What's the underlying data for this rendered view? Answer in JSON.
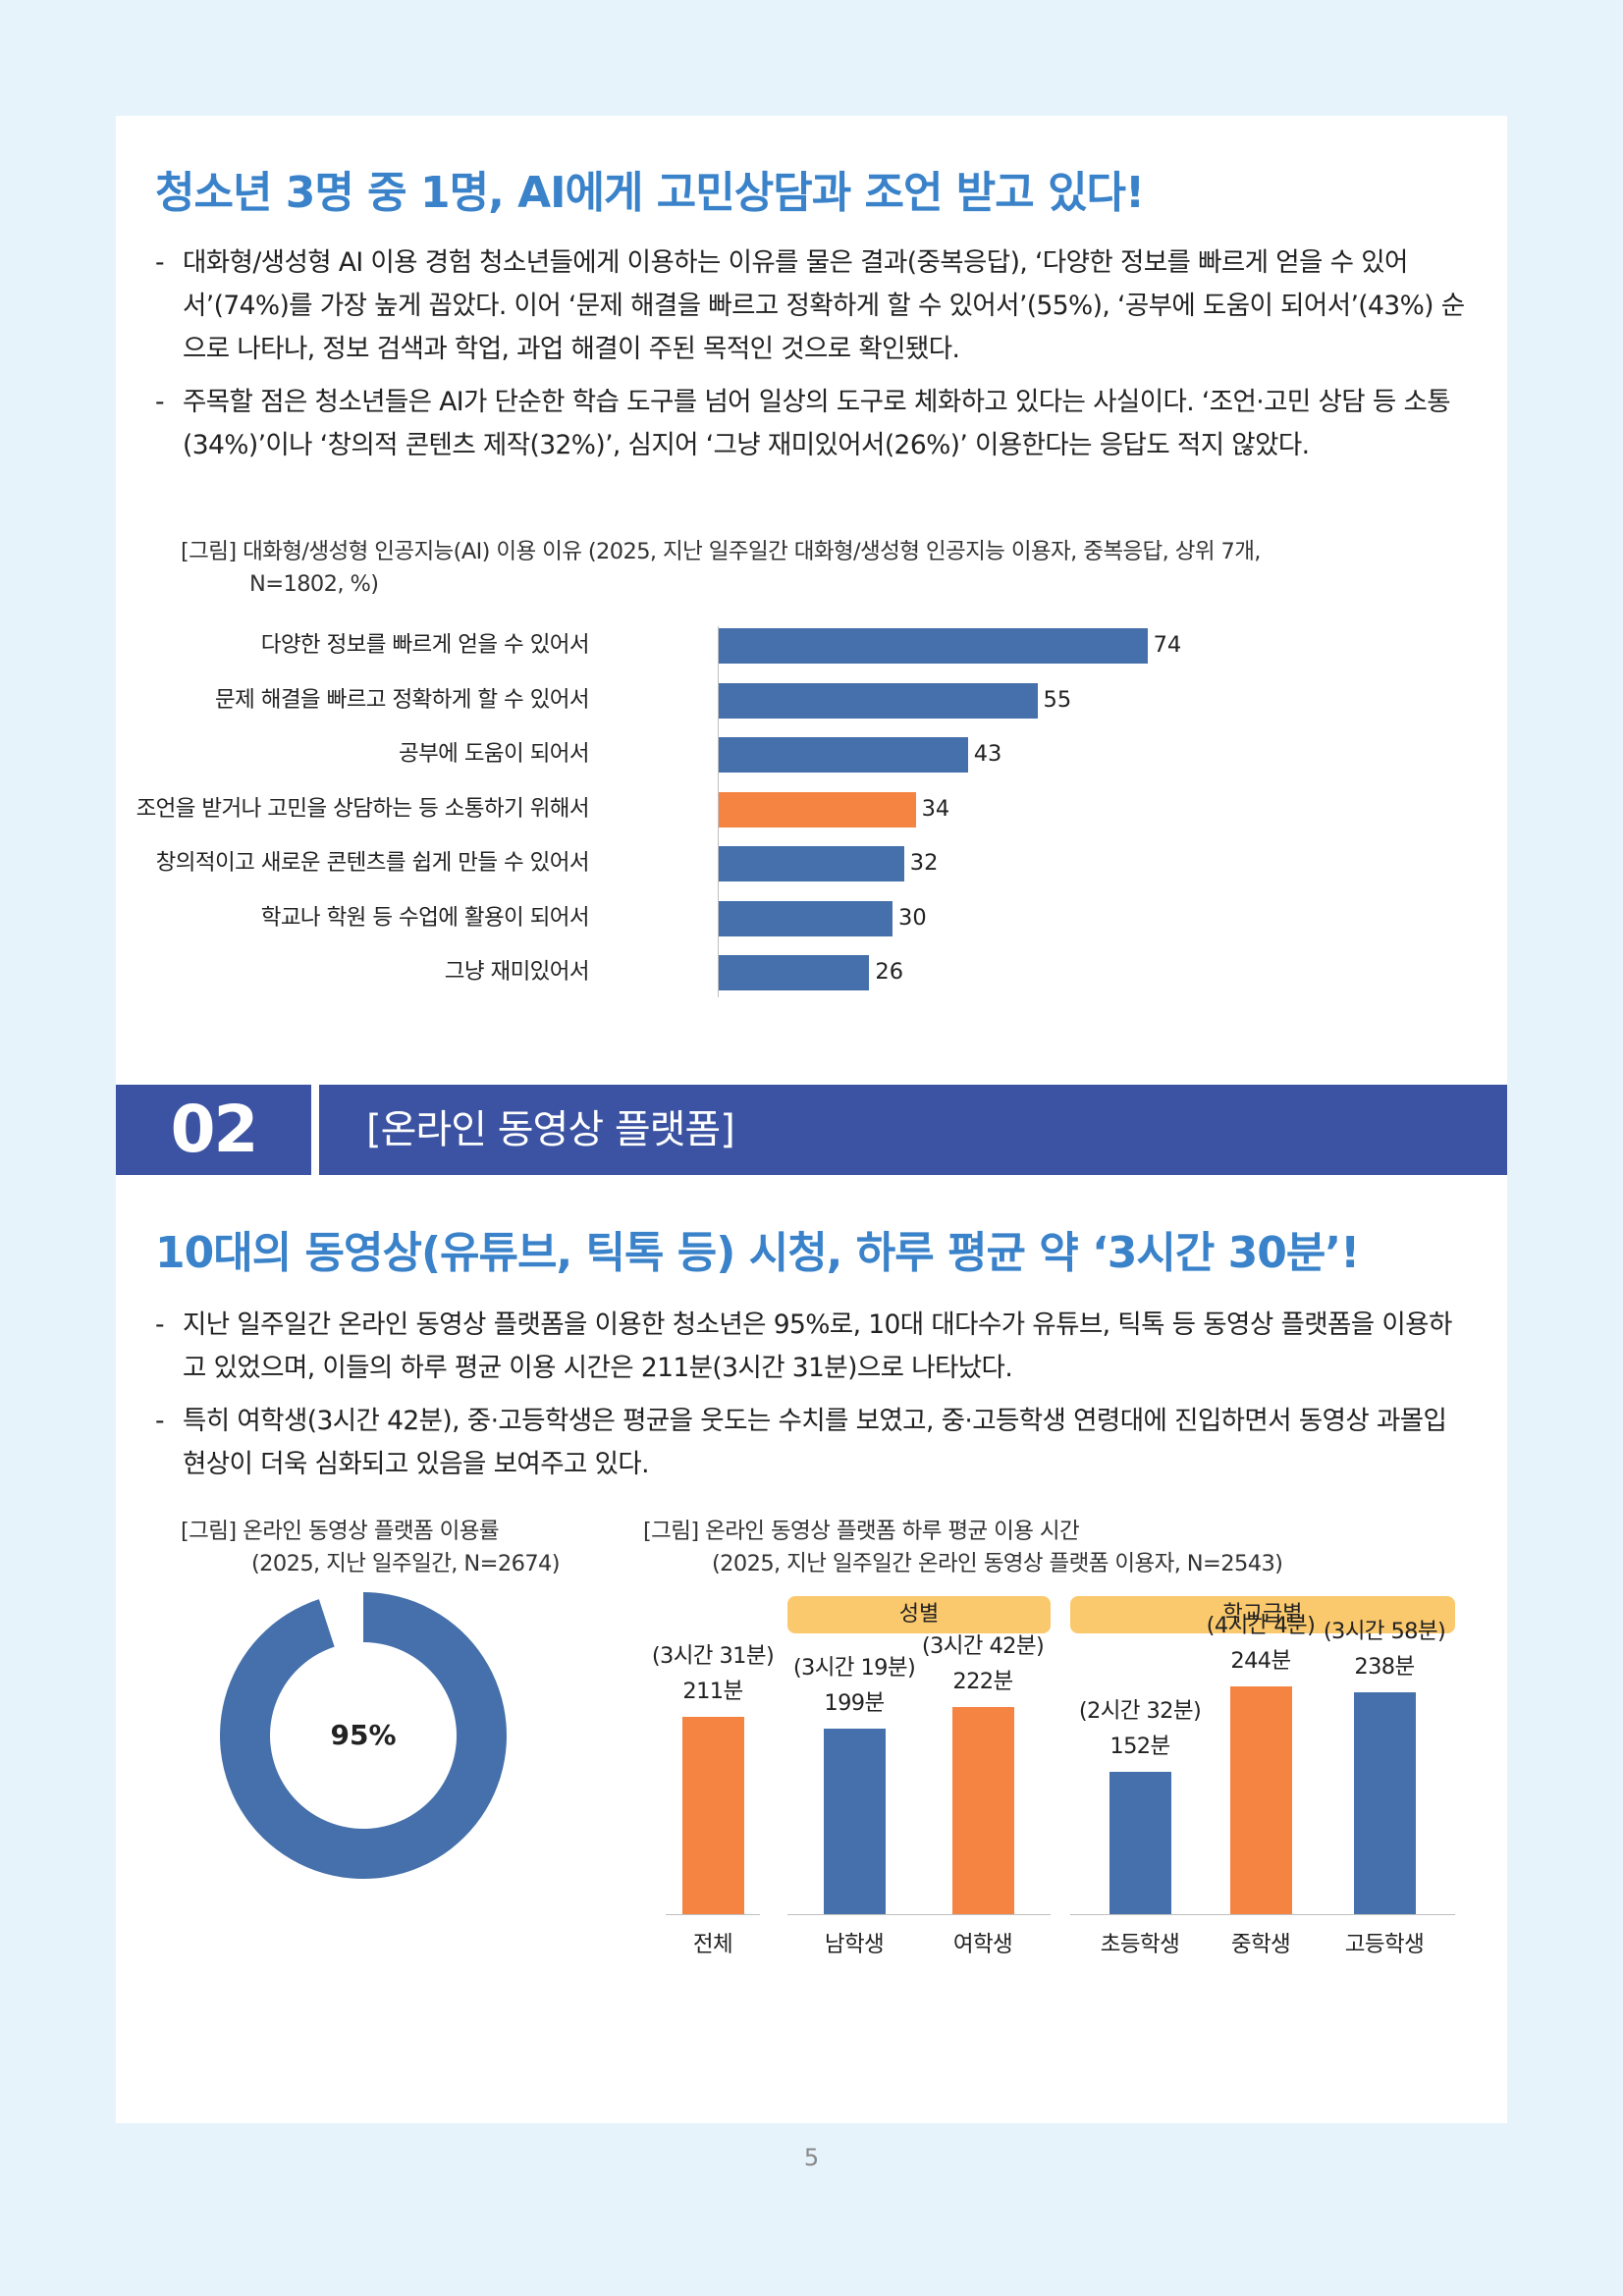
{
  "section1": {
    "headline": "청소년 3명 중 1명, AI에게 고민상담과 조언 받고 있다!",
    "bullets": [
      "대화형/생성형 AI 이용 경험 청소년들에게 이용하는 이유를 물은 결과(중복응답), ‘다양한 정보를 빠르게 얻을 수 있어서’(74%)를 가장 높게 꼽았다. 이어 ‘문제 해결을 빠르고 정확하게 할 수 있어서’(55%), ‘공부에 도움이 되어서’(43%) 순으로 나타나, 정보 검색과 학업, 과업 해결이 주된 목적인 것으로 확인됐다.",
      "주목할 점은 청소년들은 AI가 단순한 학습 도구를 넘어 일상의 도구로 체화하고 있다는 사실이다. ‘조언·고민 상담 등 소통(34%)’이나 ‘창의적 콘텐츠 제작(32%)’, 심지어 ‘그냥 재미있어서(26%)’ 이용한다는 응답도 적지 않았다."
    ],
    "figure_caption_1": "[그림] 대화형/생성형 인공지능(AI) 이용 이유 (2025, 지난 일주일간 대화형/생성형 인공지능 이용자, 중복응답, 상위 7개,",
    "figure_caption_2": "N=1802, %)"
  },
  "section2": {
    "number": "02",
    "title": "[온라인 동영상 플랫폼]",
    "headline": "10대의 동영상(유튜브, 틱톡 등) 시청, 하루 평균 약 ‘3시간 30분’!",
    "bullets": [
      "지난 일주일간 온라인 동영상 플랫폼을 이용한 청소년은 95%로, 10대 대다수가 유튜브, 틱톡 등 동영상 플랫폼을 이용하고 있었으며, 이들의 하루 평균 이용 시간은 211분(3시간 31분)으로 나타났다.",
      "특히 여학생(3시간 42분), 중·고등학생은 평균을 웃도는 수치를 보였고, 중·고등학생 연령대에 진입하면서 동영상 과몰입 현상이 더욱 심화되고 있음을 보여주고 있다."
    ],
    "donut_caption_1": "[그림] 온라인 동영상 플랫폼 이용률",
    "donut_caption_2": "(2025, 지난 일주일간, N=2674)",
    "vbar_caption_1": "[그림] 온라인 동영상 플랫폼 하루 평균 이용 시간",
    "vbar_caption_2": "(2025, 지난 일주일간 온라인 동영상 플랫폼 이용자, N=2543)",
    "group_gender": "성별",
    "group_school": "학교급별"
  },
  "page_number": "5",
  "colors": {
    "blue": "#4570ab",
    "orange": "#f58443",
    "headline": "#3a82c9",
    "band": "#3b53a2",
    "pill": "#fbc96d"
  },
  "chart_data": [
    {
      "type": "bar",
      "orientation": "horizontal",
      "categories": [
        "다양한 정보를 빠르게 얻을 수 있어서",
        "문제 해결을 빠르고 정확하게 할 수 있어서",
        "공부에 도움이 되어서",
        "조언을 받거나 고민을 상담하는 등 소통하기 위해서",
        "창의적이고 새로운 콘텐츠를 쉽게 만들 수 있어서",
        "학교나 학원 등 수업에 활용이 되어서",
        "그냥 재미있어서"
      ],
      "values": [
        74,
        55,
        43,
        34,
        32,
        30,
        26
      ],
      "value_labels": [
        "74",
        "55",
        "43",
        "34",
        "32",
        "30",
        "26"
      ],
      "highlight_index": 3,
      "xlim": [
        0,
        100
      ]
    },
    {
      "type": "pie",
      "style": "donut",
      "values": [
        95,
        5
      ],
      "center_label": "95%"
    },
    {
      "type": "bar",
      "orientation": "vertical",
      "categories": [
        "전체",
        "남학생",
        "여학생",
        "초등학생",
        "중학생",
        "고등학생"
      ],
      "values": [
        211,
        199,
        222,
        152,
        244,
        238
      ],
      "value_labels": [
        "211분",
        "199분",
        "222분",
        "152분",
        "244분",
        "238분"
      ],
      "time_labels": [
        "(3시간 31분)",
        "(3시간 19분)",
        "(3시간 42분)",
        "(2시간 32분)",
        "(4시간 4분)",
        "(3시간 58분)"
      ],
      "bar_colors": [
        "orange",
        "blue",
        "orange",
        "blue",
        "orange",
        "blue"
      ],
      "ylim": [
        0,
        300
      ]
    }
  ]
}
